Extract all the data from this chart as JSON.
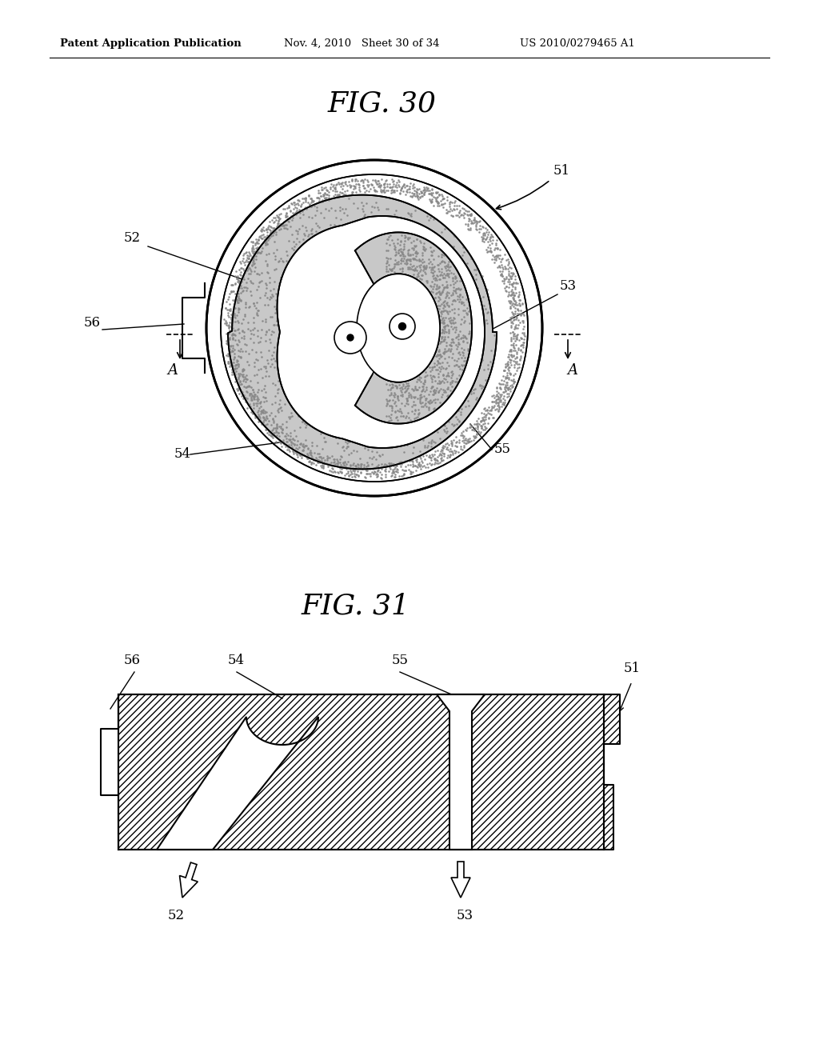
{
  "bg_color": "#ffffff",
  "header_left": "Patent Application Publication",
  "header_mid": "Nov. 4, 2010   Sheet 30 of 34",
  "header_right": "US 2010/0279465 A1",
  "fig30_title": "FIG. 30",
  "fig31_title": "FIG. 31",
  "line_color": "#000000",
  "stipple_color": "#b0b0b0",
  "stipple_color2": "#c8c8c8"
}
